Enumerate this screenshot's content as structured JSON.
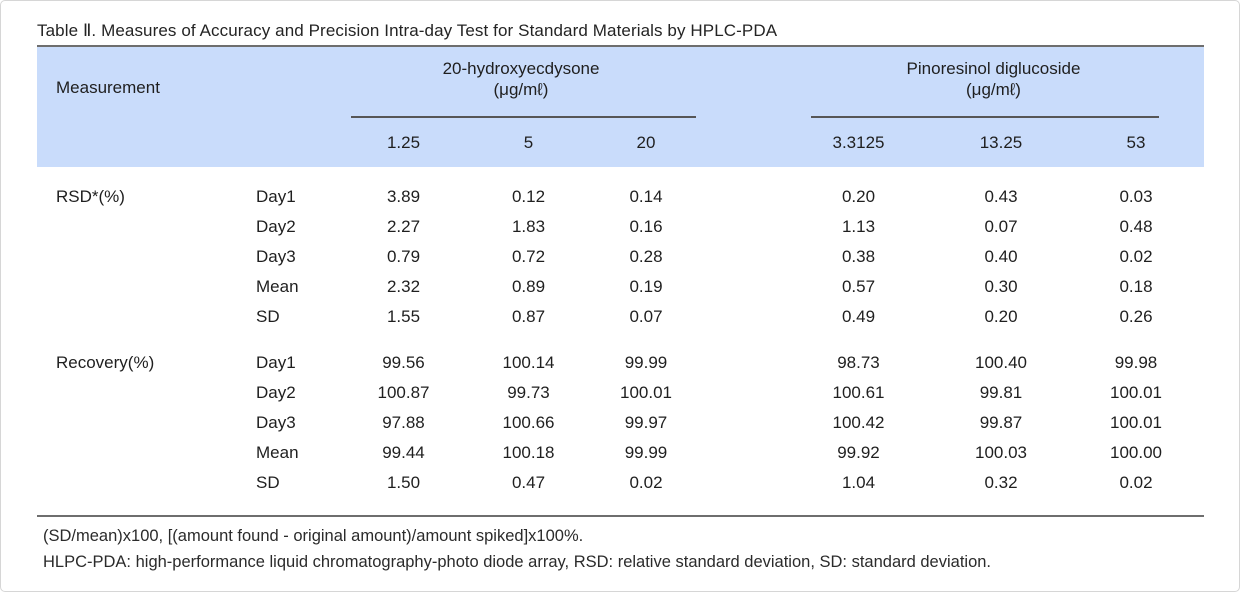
{
  "title": "Table Ⅱ. Measures of Accuracy and Precision Intra-day Test for Standard Materials by HPLC-PDA",
  "header": {
    "measurement_label": "Measurement",
    "groups": [
      {
        "name": "20-hydroxyecdysone",
        "unit": "(μg/mℓ)",
        "concentrations": [
          "1.25",
          "5",
          "20"
        ]
      },
      {
        "name": "Pinoresinol diglucoside",
        "unit": "(μg/mℓ)",
        "concentrations": [
          "3.3125",
          "13.25",
          "53"
        ]
      }
    ]
  },
  "sections": [
    {
      "label": "RSD*(%)",
      "rows": [
        {
          "label": "Day1",
          "values": [
            "3.89",
            "0.12",
            "0.14",
            "0.20",
            "0.43",
            "0.03"
          ]
        },
        {
          "label": "Day2",
          "values": [
            "2.27",
            "1.83",
            "0.16",
            "1.13",
            "0.07",
            "0.48"
          ]
        },
        {
          "label": "Day3",
          "values": [
            "0.79",
            "0.72",
            "0.28",
            "0.38",
            "0.40",
            "0.02"
          ]
        },
        {
          "label": "Mean",
          "values": [
            "2.32",
            "0.89",
            "0.19",
            "0.57",
            "0.30",
            "0.18"
          ]
        },
        {
          "label": "SD",
          "values": [
            "1.55",
            "0.87",
            "0.07",
            "0.49",
            "0.20",
            "0.26"
          ]
        }
      ]
    },
    {
      "label": "Recovery(%)",
      "rows": [
        {
          "label": "Day1",
          "values": [
            "99.56",
            "100.14",
            "99.99",
            "98.73",
            "100.40",
            "99.98"
          ]
        },
        {
          "label": "Day2",
          "values": [
            "100.87",
            "99.73",
            "100.01",
            "100.61",
            "99.81",
            "100.01"
          ]
        },
        {
          "label": "Day3",
          "values": [
            "97.88",
            "100.66",
            "99.97",
            "100.42",
            "99.87",
            "100.01"
          ]
        },
        {
          "label": "Mean",
          "values": [
            "99.44",
            "100.18",
            "99.99",
            "99.92",
            "100.03",
            "100.00"
          ]
        },
        {
          "label": "SD",
          "values": [
            "1.50",
            "0.47",
            "0.02",
            "1.04",
            "0.32",
            "0.02"
          ]
        }
      ]
    }
  ],
  "footnotes": [
    "(SD/mean)x100, [(amount found - original amount)/amount spiked]x100%.",
    "HLPC-PDA: high-performance liquid chromatography-photo diode array, RSD: relative standard deviation, SD: standard deviation."
  ],
  "colors": {
    "header_bg": "#c9dcfb",
    "rule": "#6e6e6e",
    "group_underline": "#565656",
    "text": "#1f1f1f"
  }
}
